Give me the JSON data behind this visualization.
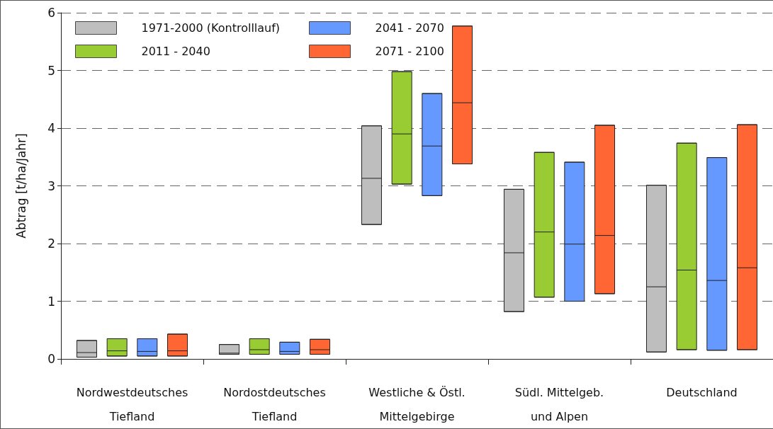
{
  "chart_data": {
    "type": "box",
    "categories": [
      "Nordwestdeutsches\nTiefland",
      "Nordostdeutsches\nTiefland",
      "Westliche & Östl.\nMittelgebirge",
      "Südl. Mittelgeb.\nund Alpen",
      "Deutschland"
    ],
    "ylabel": "Abtrag [t/ha/Jahr]",
    "ylim": [
      0,
      6
    ],
    "yticks": [
      0,
      1,
      2,
      3,
      4,
      5,
      6
    ],
    "grid": "y",
    "line_style": "dashed",
    "legend": "top left",
    "series": [
      {
        "name": "1971-2000 (Kontrolllauf)",
        "color": "#bebebe",
        "boxes": [
          {
            "low": 0.03,
            "q1": 0.03,
            "median": 0.11,
            "q3": 0.32,
            "high": 0.32
          },
          {
            "low": 0.08,
            "q1": 0.08,
            "median": 0.1,
            "q3": 0.25,
            "high": 0.25
          },
          {
            "low": 2.33,
            "q1": 2.33,
            "median": 3.13,
            "q3": 4.04,
            "high": 4.04
          },
          {
            "low": 0.82,
            "q1": 0.82,
            "median": 1.84,
            "q3": 2.94,
            "high": 2.94
          },
          {
            "low": 0.12,
            "q1": 0.12,
            "median": 1.25,
            "q3": 3.01,
            "high": 3.01
          }
        ]
      },
      {
        "name": "2011 - 2040",
        "color": "#99cc33",
        "boxes": [
          {
            "low": 0.05,
            "q1": 0.05,
            "median": 0.14,
            "q3": 0.35,
            "high": 0.35
          },
          {
            "low": 0.08,
            "q1": 0.08,
            "median": 0.16,
            "q3": 0.35,
            "high": 0.35
          },
          {
            "low": 3.03,
            "q1": 3.03,
            "median": 3.9,
            "q3": 4.98,
            "high": 4.98
          },
          {
            "low": 1.07,
            "q1": 1.07,
            "median": 2.2,
            "q3": 3.58,
            "high": 3.58
          },
          {
            "low": 0.16,
            "q1": 0.16,
            "median": 1.54,
            "q3": 3.74,
            "high": 3.74
          }
        ]
      },
      {
        "name": "2041 - 2070",
        "color": "#6699ff",
        "boxes": [
          {
            "low": 0.05,
            "q1": 0.05,
            "median": 0.13,
            "q3": 0.35,
            "high": 0.35
          },
          {
            "low": 0.08,
            "q1": 0.08,
            "median": 0.13,
            "q3": 0.29,
            "high": 0.29
          },
          {
            "low": 2.83,
            "q1": 2.83,
            "median": 3.69,
            "q3": 4.6,
            "high": 4.6
          },
          {
            "low": 1.0,
            "q1": 1.0,
            "median": 1.99,
            "q3": 3.41,
            "high": 3.41
          },
          {
            "low": 0.15,
            "q1": 0.15,
            "median": 1.36,
            "q3": 3.49,
            "high": 3.49
          }
        ]
      },
      {
        "name": "2071 - 2100",
        "color": "#ff6633",
        "boxes": [
          {
            "low": 0.05,
            "q1": 0.05,
            "median": 0.14,
            "q3": 0.43,
            "high": 0.43
          },
          {
            "low": 0.08,
            "q1": 0.08,
            "median": 0.16,
            "q3": 0.34,
            "high": 0.34
          },
          {
            "low": 3.38,
            "q1": 3.38,
            "median": 4.44,
            "q3": 5.77,
            "high": 5.77
          },
          {
            "low": 1.13,
            "q1": 1.13,
            "median": 2.14,
            "q3": 4.05,
            "high": 4.05
          },
          {
            "low": 0.16,
            "q1": 0.16,
            "median": 1.58,
            "q3": 4.06,
            "high": 4.06
          }
        ]
      }
    ]
  }
}
